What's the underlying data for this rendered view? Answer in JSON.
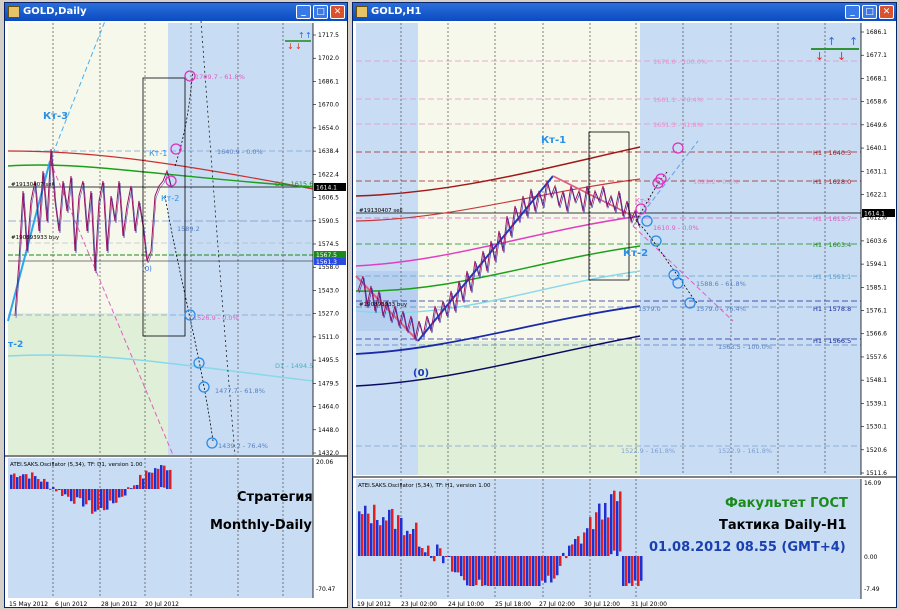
{
  "left_window": {
    "title": "GOLD,Daily",
    "price_ticks": [
      "1717.5",
      "1702.0",
      "1686.1",
      "1670.0",
      "1654.0",
      "1638.4",
      "1622.4",
      "1606.5",
      "1590.5",
      "1574.5",
      "1558.0",
      "1543.0",
      "1527.0",
      "1511.0",
      "1495.5",
      "1479.5",
      "1464.0",
      "1448.0",
      "1432.0"
    ],
    "date_ticks": [
      "15 May 2012",
      "6 Jun 2012",
      "28 Jun 2012",
      "20 Jul 2012"
    ],
    "current_price_badge": "1614.1",
    "badge_green": "1567.5",
    "badge_blue": "1561.3",
    "labels": {
      "kt3": "Кт-3",
      "kt1": "Кт-1",
      "kt2_top": "Кт-2",
      "kt2_left": "т-2",
      "zero": "(0)",
      "order1": "#19130407 sell",
      "order2": "#190893933 buy",
      "lvl_1": "1709.7 - 61.8%",
      "lvl_2": "1640.9 - 0.0%",
      "lvl_3": "D1 - 1615.6",
      "lvl_4": "1589.2",
      "lvl_5": "1526.9 - 0.0%",
      "lvl_6": "D1 - 1494.5",
      "lvl_7": "1477.7 - 61.8%",
      "lvl_8": "1439.2 - 76.4%"
    },
    "oscillator": {
      "title": "ATEI.SAKS.Oscillator (5,34), TF: D1, version 1.00",
      "top": "20.06",
      "bottom": "-70.47",
      "strategy_line1": "Стратегия",
      "strategy_line2": "Monthly-Daily"
    }
  },
  "right_window": {
    "title": "GOLD,H1",
    "price_ticks": [
      "1686.1",
      "1677.1",
      "1668.1",
      "1658.6",
      "1649.6",
      "1640.1",
      "1631.1",
      "1622.1",
      "1612.6",
      "1603.6",
      "1594.1",
      "1585.1",
      "1576.1",
      "1566.6",
      "1557.6",
      "1548.1",
      "1539.1",
      "1530.1",
      "1520.6",
      "1511.6"
    ],
    "date_ticks": [
      "19 Jul 2012",
      "23 Jul 02:00",
      "24 Jul 10:00",
      "25 Jul 18:00",
      "27 Jul 02:00",
      "30 Jul 12:00",
      "31 Jul 20:00"
    ],
    "current_price_badge": "1614.1",
    "labels": {
      "kt1": "Кт-1",
      "kt2": "Кт-2",
      "kt2_small": "Кт-2",
      "zero": "(0)",
      "order1": "#19130407 sell",
      "order2": "#190893933 buy",
      "fib_1": "1676.6 - 100.0%",
      "fib_2": "1661.1 - 76.4%",
      "fib_3": "1651.3 - 61.8%",
      "fib_4": "1629.2 - 0.0%",
      "fib_5": "1610.9 - 0.0%",
      "fib_6": "1588.6 - 61.8%",
      "fib_7": "1579.0",
      "fib_8": "1579.0 - 76.4%",
      "fib_9": "1563.5 - 100.0%",
      "fib_10": "1522.9 - 161.8%",
      "fib_11": "1522.9 - 161.8%",
      "h1_1": "H1 - 1640.3",
      "h1_2": "H1 - 1628.0",
      "h1_3": "H1 - 1615.7",
      "h1_4": "H1 - 1603.4",
      "h1_5": "H1 - 1591.1",
      "h1_6": "H1 - 1578.8",
      "h1_7": "H1 - 1566.5"
    },
    "oscillator": {
      "title": "ATEI.SAKS.Oscillator (5,34), TF: H1, version 1.00",
      "top": "16.09",
      "mid": "0.00",
      "bottom": "-7.49",
      "faculty": "Факультет ГОСТ",
      "tactic": "Тактика Daily-H1",
      "datetime": "01.08.2012  08.55 (GMT+4)"
    }
  },
  "colors": {
    "title_bar": "#0b4bc0",
    "faculty_green": "#1a8a1a",
    "datetime_blue": "#1a3fb0"
  }
}
